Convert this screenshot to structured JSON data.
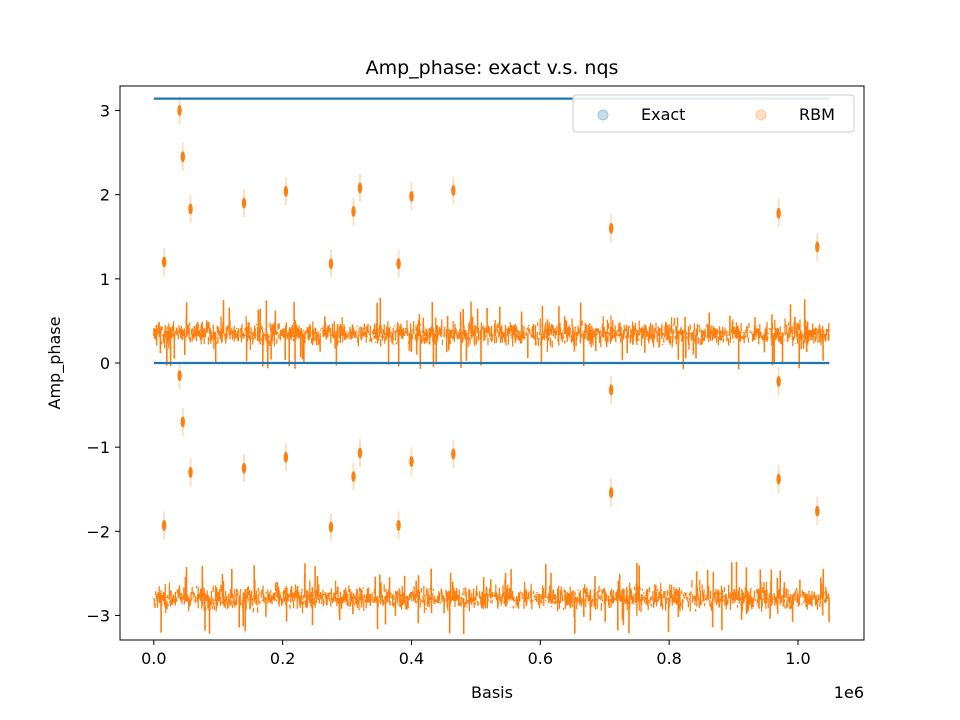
{
  "chart_data": {
    "type": "scatter",
    "title": "Amp_phase: exact v.s. nqs",
    "xlabel": "Basis",
    "ylabel": "Amp_phase",
    "x_offset_label": "1e6",
    "xlim": [
      -0.0525,
      1.1025
    ],
    "ylim": [
      -3.2916,
      3.2916
    ],
    "x_ticks": [
      0.0,
      0.2,
      0.4,
      0.6,
      0.8,
      1.0
    ],
    "x_tick_labels": [
      "0.0",
      "0.2",
      "0.4",
      "0.6",
      "0.8",
      "1.0"
    ],
    "y_ticks": [
      -3,
      -2,
      -1,
      0,
      1,
      2,
      3
    ],
    "y_tick_labels": [
      "−3",
      "−2",
      "−1",
      "0",
      "1",
      "2",
      "3"
    ],
    "grid": false,
    "legend_position": "upper-right",
    "series": [
      {
        "name": "Exact",
        "color": "#1f77b4",
        "bands": [
          {
            "y": 3.1416,
            "x_range": [
              0.0,
              1.048576
            ]
          },
          {
            "y": 0.0,
            "x_range": [
              0.0,
              1.048576
            ]
          }
        ]
      },
      {
        "name": "RBM",
        "color": "#ff7f0e",
        "bands": [
          {
            "center": 0.35,
            "spread": 0.08,
            "x_range": [
              0.0,
              1.048576
            ]
          },
          {
            "center": -2.79,
            "spread": 0.08,
            "x_range": [
              0.0,
              1.048576
            ]
          }
        ],
        "clusters": [
          {
            "x": 0.016,
            "y": 1.2
          },
          {
            "x": 0.04,
            "y": 3.0
          },
          {
            "x": 0.045,
            "y": 2.45
          },
          {
            "x": 0.057,
            "y": 1.83
          },
          {
            "x": 0.14,
            "y": 1.9
          },
          {
            "x": 0.205,
            "y": 2.04
          },
          {
            "x": 0.275,
            "y": 1.18
          },
          {
            "x": 0.31,
            "y": 1.8
          },
          {
            "x": 0.32,
            "y": 2.08
          },
          {
            "x": 0.38,
            "y": 1.18
          },
          {
            "x": 0.4,
            "y": 1.98
          },
          {
            "x": 0.465,
            "y": 2.05
          },
          {
            "x": 0.71,
            "y": 1.6
          },
          {
            "x": 0.97,
            "y": 1.78
          },
          {
            "x": 1.03,
            "y": 1.38
          },
          {
            "x": 0.016,
            "y": -1.93
          },
          {
            "x": 0.04,
            "y": -0.15
          },
          {
            "x": 0.045,
            "y": -0.7
          },
          {
            "x": 0.057,
            "y": -1.3
          },
          {
            "x": 0.14,
            "y": -1.25
          },
          {
            "x": 0.205,
            "y": -1.12
          },
          {
            "x": 0.275,
            "y": -1.95
          },
          {
            "x": 0.31,
            "y": -1.35
          },
          {
            "x": 0.32,
            "y": -1.07
          },
          {
            "x": 0.38,
            "y": -1.93
          },
          {
            "x": 0.4,
            "y": -1.17
          },
          {
            "x": 0.465,
            "y": -1.08
          },
          {
            "x": 0.71,
            "y": -1.54
          },
          {
            "x": 0.71,
            "y": -0.32
          },
          {
            "x": 0.97,
            "y": -1.38
          },
          {
            "x": 0.97,
            "y": -0.22
          },
          {
            "x": 1.03,
            "y": -1.76
          }
        ]
      }
    ]
  }
}
